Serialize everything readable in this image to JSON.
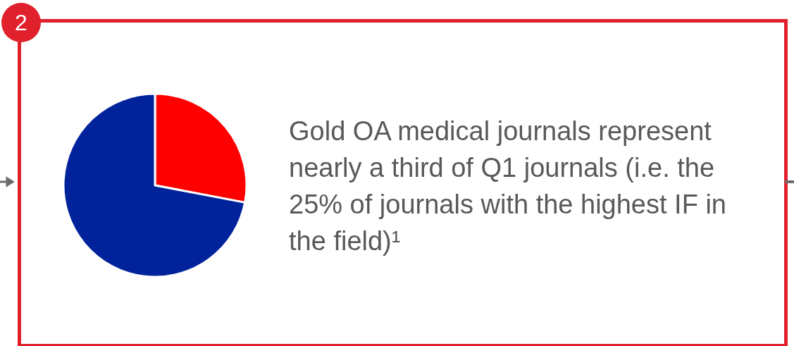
{
  "chart_data": {
    "type": "pie",
    "categories": [
      null,
      null
    ],
    "values": [
      28,
      72
    ],
    "colors": [
      "#ff0000",
      "#00239c"
    ],
    "annotations": [
      "2",
      "Gold OA medical journals represent nearly a third of Q1 journals (i.e. the 25% of journals with the highest IF in the field)¹"
    ]
  }
}
